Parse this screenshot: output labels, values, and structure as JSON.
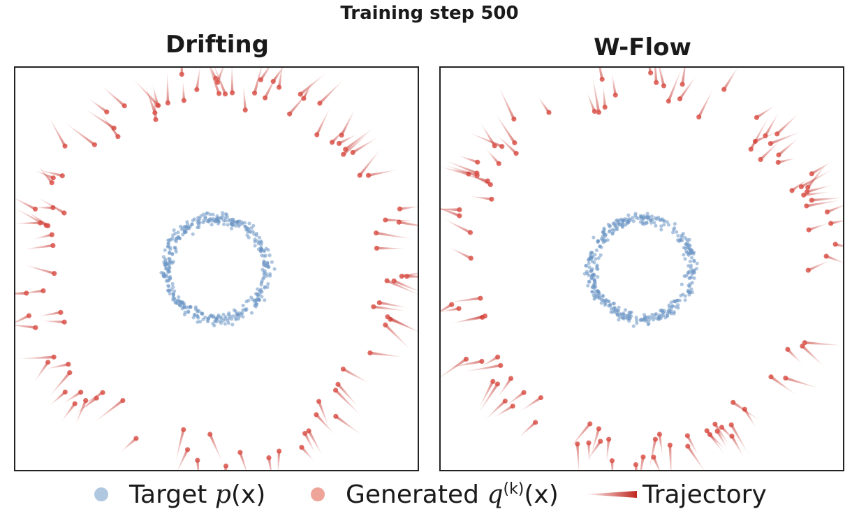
{
  "figure": {
    "suptitle": "Training step 500",
    "legend": {
      "target": {
        "pre": "Target ",
        "math": "p",
        "post": "(x)"
      },
      "generated": {
        "pre": "Generated ",
        "math": "q",
        "sup": "(k)",
        "post": "(x)"
      },
      "trajectory": "Trajectory"
    },
    "colors": {
      "target": "#6b96c4",
      "generated": "#d9534a",
      "trajectory": "#c0261f",
      "legend_target": "#b0c8df",
      "legend_generated": "#efa49a"
    }
  },
  "chart_data": [
    {
      "type": "scatter",
      "title": "Drifting",
      "xlim": [
        -6,
        6
      ],
      "ylim": [
        -6,
        6
      ],
      "grid": false,
      "legend_position": "bottom",
      "series": [
        {
          "name": "Target p(x)",
          "kind": "ring",
          "n_points": 400,
          "radius": 1.5,
          "noise": 0.09,
          "center": [
            0,
            0
          ]
        },
        {
          "name": "Generated q(k)(x)",
          "kind": "ring",
          "radius_range": [
            4.8,
            5.9
          ],
          "n_points": 100
        },
        {
          "name": "Trajectory",
          "kind": "arrows"
        }
      ]
    },
    {
      "type": "scatter",
      "title": "W-Flow",
      "xlim": [
        -6,
        6
      ],
      "ylim": [
        -6,
        6
      ],
      "grid": false,
      "legend_position": "bottom",
      "series": [
        {
          "name": "Target p(x)",
          "kind": "ring",
          "n_points": 400,
          "radius": 1.5,
          "noise": 0.09,
          "center": [
            0,
            0
          ]
        },
        {
          "name": "Generated q(k)(x)",
          "kind": "ring",
          "radius_range": [
            4.8,
            5.9
          ],
          "n_points": 100
        },
        {
          "name": "Trajectory",
          "kind": "arrows"
        }
      ]
    }
  ]
}
